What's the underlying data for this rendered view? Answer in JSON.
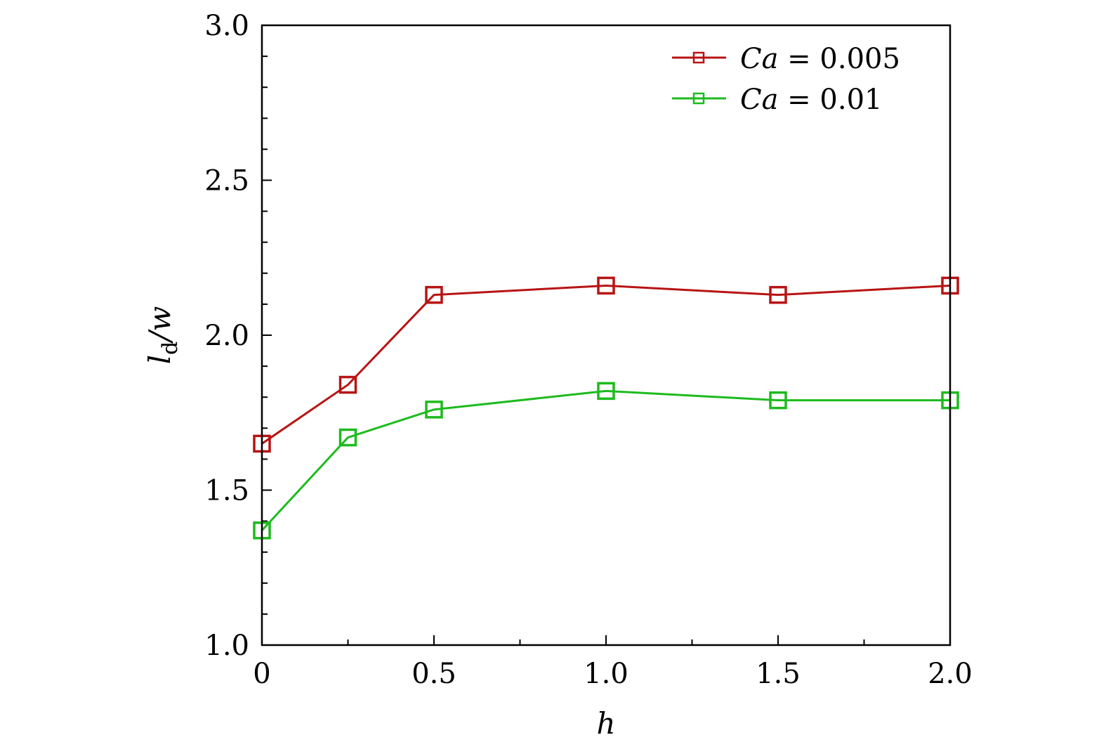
{
  "chart_data": {
    "type": "line",
    "title": "",
    "xlabel": "h",
    "ylabel": "l_d/w",
    "ylabel_parts": {
      "main": "l",
      "sub": "d",
      "rest": "/w"
    },
    "xlim": [
      0,
      2.0
    ],
    "ylim": [
      1.0,
      3.0
    ],
    "x_major_ticks": [
      0,
      0.5,
      1.0,
      1.5,
      2.0
    ],
    "x_tick_labels": [
      "0",
      "0.5",
      "1.0",
      "1.5",
      "2.0"
    ],
    "x_minor_ticks": [
      0.25,
      0.75,
      1.25,
      1.75
    ],
    "y_major_ticks": [
      1.0,
      1.5,
      2.0,
      2.5,
      3.0
    ],
    "y_tick_labels": [
      "1.0",
      "1.5",
      "2.0",
      "2.5",
      "3.0"
    ],
    "y_minor_ticks": [
      1.1,
      1.2,
      1.3,
      1.4,
      1.6,
      1.7,
      1.8,
      1.9,
      2.1,
      2.2,
      2.3,
      2.4,
      2.6,
      2.7,
      2.8,
      2.9
    ],
    "grid": false,
    "legend_position": "top-right",
    "series": [
      {
        "name": "Ca = 0.005",
        "label_var": "Ca",
        "label_rest": " = 0.005",
        "color": "#b81414",
        "marker": "square",
        "x": [
          0,
          0.25,
          0.5,
          1.0,
          1.5,
          2.0
        ],
        "values": [
          1.65,
          1.84,
          2.13,
          2.16,
          2.13,
          2.16
        ]
      },
      {
        "name": "Ca = 0.01",
        "label_var": "Ca",
        "label_rest": " = 0.01",
        "color": "#1dbb1d",
        "marker": "square",
        "x": [
          0,
          0.25,
          0.5,
          1.0,
          1.5,
          2.0
        ],
        "values": [
          1.37,
          1.67,
          1.76,
          1.82,
          1.79,
          1.79
        ]
      }
    ]
  }
}
